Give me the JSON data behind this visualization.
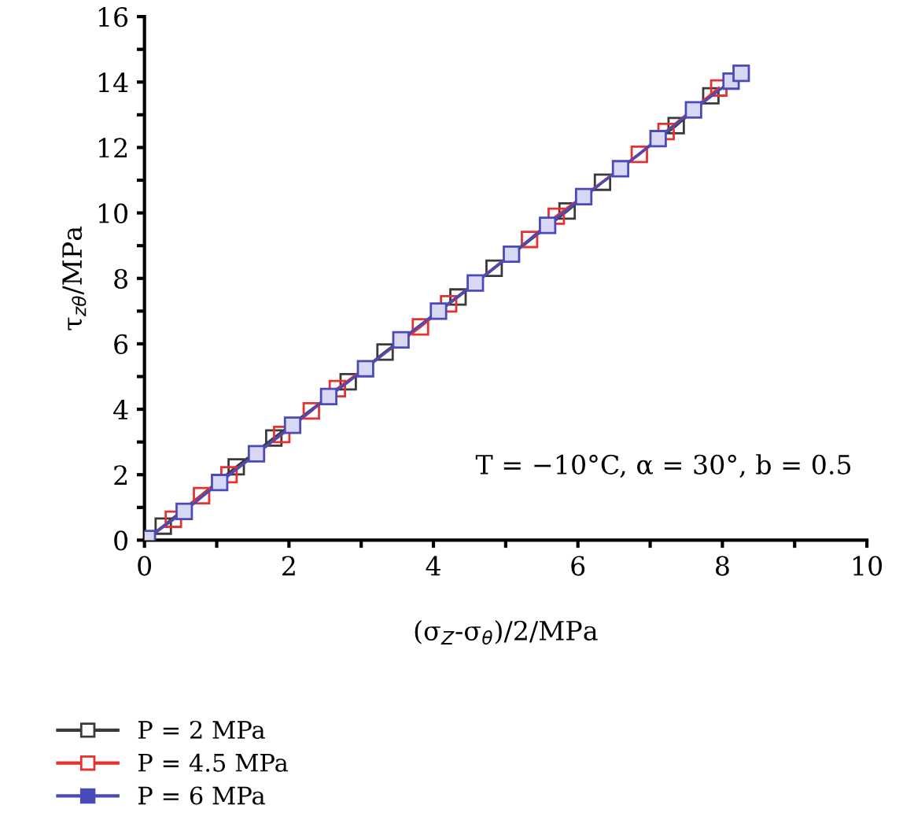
{
  "chart_data": {
    "type": "line",
    "xlabel": "(σ$_{Z}$-σ$_{θ}$)/2/MPa",
    "ylabel": "τ$_{zθ}$/MPa",
    "xlim": [
      0,
      10
    ],
    "ylim": [
      0,
      16
    ],
    "xticks": [
      0,
      {
        "value": 1,
        "label": null
      },
      2,
      {
        "value": 3,
        "label": null
      },
      4,
      {
        "value": 5,
        "label": null
      },
      6,
      {
        "value": 7,
        "label": null
      },
      8,
      {
        "value": 9,
        "label": null
      },
      10
    ],
    "yticks": [
      0,
      {
        "value": 1,
        "label": null
      },
      2,
      {
        "value": 3,
        "label": null
      },
      4,
      {
        "value": 5,
        "label": null
      },
      6,
      {
        "value": 7,
        "label": null
      },
      8,
      {
        "value": 9,
        "label": null
      },
      10,
      {
        "value": 11,
        "label": null
      },
      12,
      {
        "value": 13,
        "label": null
      },
      14,
      {
        "value": 15,
        "label": null
      },
      16
    ],
    "marker": "square",
    "line_style": "solid",
    "grid": false,
    "legend": "bottom left",
    "annotations": [
      "T = −10°C, α = 30°, b = 0.5"
    ],
    "series": [
      {
        "name": "P = 2 MPa",
        "color": "#3a3a3a",
        "x": [
          0,
          0.26,
          1.27,
          1.79,
          2.82,
          3.33,
          4.34,
          4.84,
          5.85,
          6.34,
          7.36,
          7.84
        ],
        "values": [
          0,
          0.43,
          2.24,
          3.12,
          4.84,
          5.75,
          7.43,
          8.31,
          10.06,
          10.94,
          12.67,
          13.58
        ]
      },
      {
        "name": "P = 4.5 MPa",
        "color": "#e83030",
        "x": [
          0,
          0.4,
          0.79,
          1.17,
          1.9,
          2.31,
          2.67,
          3.82,
          4.21,
          5.33,
          5.7,
          6.85,
          7.22,
          7.95
        ],
        "values": [
          0,
          0.64,
          1.36,
          2.0,
          3.23,
          3.95,
          4.63,
          6.52,
          7.22,
          9.19,
          9.9,
          11.79,
          12.49,
          13.82
        ]
      },
      {
        "name": "P = 6 MPa",
        "color": "#4a4ab8",
        "x": [
          0.04,
          0.55,
          1.04,
          1.55,
          2.05,
          2.55,
          3.06,
          3.55,
          4.07,
          4.58,
          5.08,
          5.58,
          6.08,
          6.59,
          7.11,
          7.6,
          8.12,
          8.26
        ],
        "values": [
          0.05,
          0.88,
          1.76,
          2.64,
          3.51,
          4.39,
          5.24,
          6.12,
          7.0,
          7.86,
          8.74,
          9.62,
          10.5,
          11.35,
          12.27,
          13.15,
          14.03,
          14.27
        ]
      }
    ]
  }
}
